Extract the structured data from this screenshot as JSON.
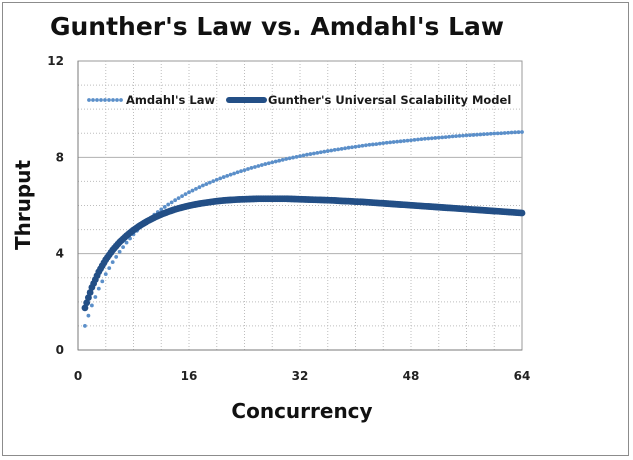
{
  "chart_data": {
    "type": "scatter",
    "title": "Gunther's Law vs. Amdahl's Law",
    "xlabel": "Concurrency",
    "ylabel": "Thruput",
    "xlim": [
      0,
      64
    ],
    "ylim": [
      0,
      12
    ],
    "xticks": [
      0,
      16,
      32,
      48,
      64
    ],
    "yticks": [
      0,
      4,
      8,
      12
    ],
    "grid": "dotted",
    "legend": "top",
    "x": [
      1,
      2,
      3,
      4,
      5,
      6,
      7,
      8,
      9,
      10,
      11,
      12,
      13,
      14,
      15,
      16,
      17,
      18,
      19,
      20,
      21,
      22,
      23,
      24,
      25,
      26,
      27,
      28,
      29,
      30,
      31,
      32,
      33,
      34,
      35,
      36,
      37,
      38,
      39,
      40,
      41,
      42,
      43,
      44,
      45,
      46,
      47,
      48,
      49,
      50,
      51,
      52,
      53,
      54,
      55,
      56,
      57,
      58,
      59,
      60,
      61,
      62,
      63,
      64
    ],
    "series": [
      {
        "name": "Amdahl's Law",
        "style": "dotted",
        "color": "#5b8fc9",
        "values": [
          1.0,
          1.85,
          2.55,
          3.15,
          3.65,
          4.08,
          4.46,
          4.8,
          5.1,
          5.37,
          5.62,
          5.84,
          6.04,
          6.22,
          6.39,
          6.55,
          6.69,
          6.83,
          6.95,
          7.07,
          7.18,
          7.28,
          7.38,
          7.47,
          7.56,
          7.64,
          7.72,
          7.79,
          7.86,
          7.93,
          7.99,
          8.05,
          8.11,
          8.16,
          8.21,
          8.26,
          8.31,
          8.35,
          8.4,
          8.44,
          8.48,
          8.52,
          8.55,
          8.59,
          8.62,
          8.65,
          8.68,
          8.71,
          8.74,
          8.77,
          8.79,
          8.82,
          8.84,
          8.87,
          8.89,
          8.91,
          8.93,
          8.95,
          8.97,
          8.99,
          9.0,
          9.02,
          9.04,
          9.05
        ]
      },
      {
        "name": "Gunther's Universal Scalability Model",
        "style": "thick",
        "color": "#234f86",
        "values": [
          1.75,
          2.6,
          3.25,
          3.75,
          4.15,
          4.48,
          4.75,
          4.98,
          5.18,
          5.35,
          5.5,
          5.63,
          5.74,
          5.84,
          5.92,
          5.99,
          6.05,
          6.1,
          6.14,
          6.18,
          6.21,
          6.23,
          6.25,
          6.26,
          6.27,
          6.28,
          6.28,
          6.28,
          6.28,
          6.28,
          6.27,
          6.26,
          6.25,
          6.24,
          6.23,
          6.22,
          6.21,
          6.19,
          6.18,
          6.16,
          6.15,
          6.13,
          6.11,
          6.09,
          6.07,
          6.05,
          6.03,
          6.01,
          5.99,
          5.97,
          5.95,
          5.93,
          5.91,
          5.89,
          5.87,
          5.85,
          5.83,
          5.81,
          5.79,
          5.77,
          5.75,
          5.73,
          5.71,
          5.69
        ]
      }
    ]
  }
}
